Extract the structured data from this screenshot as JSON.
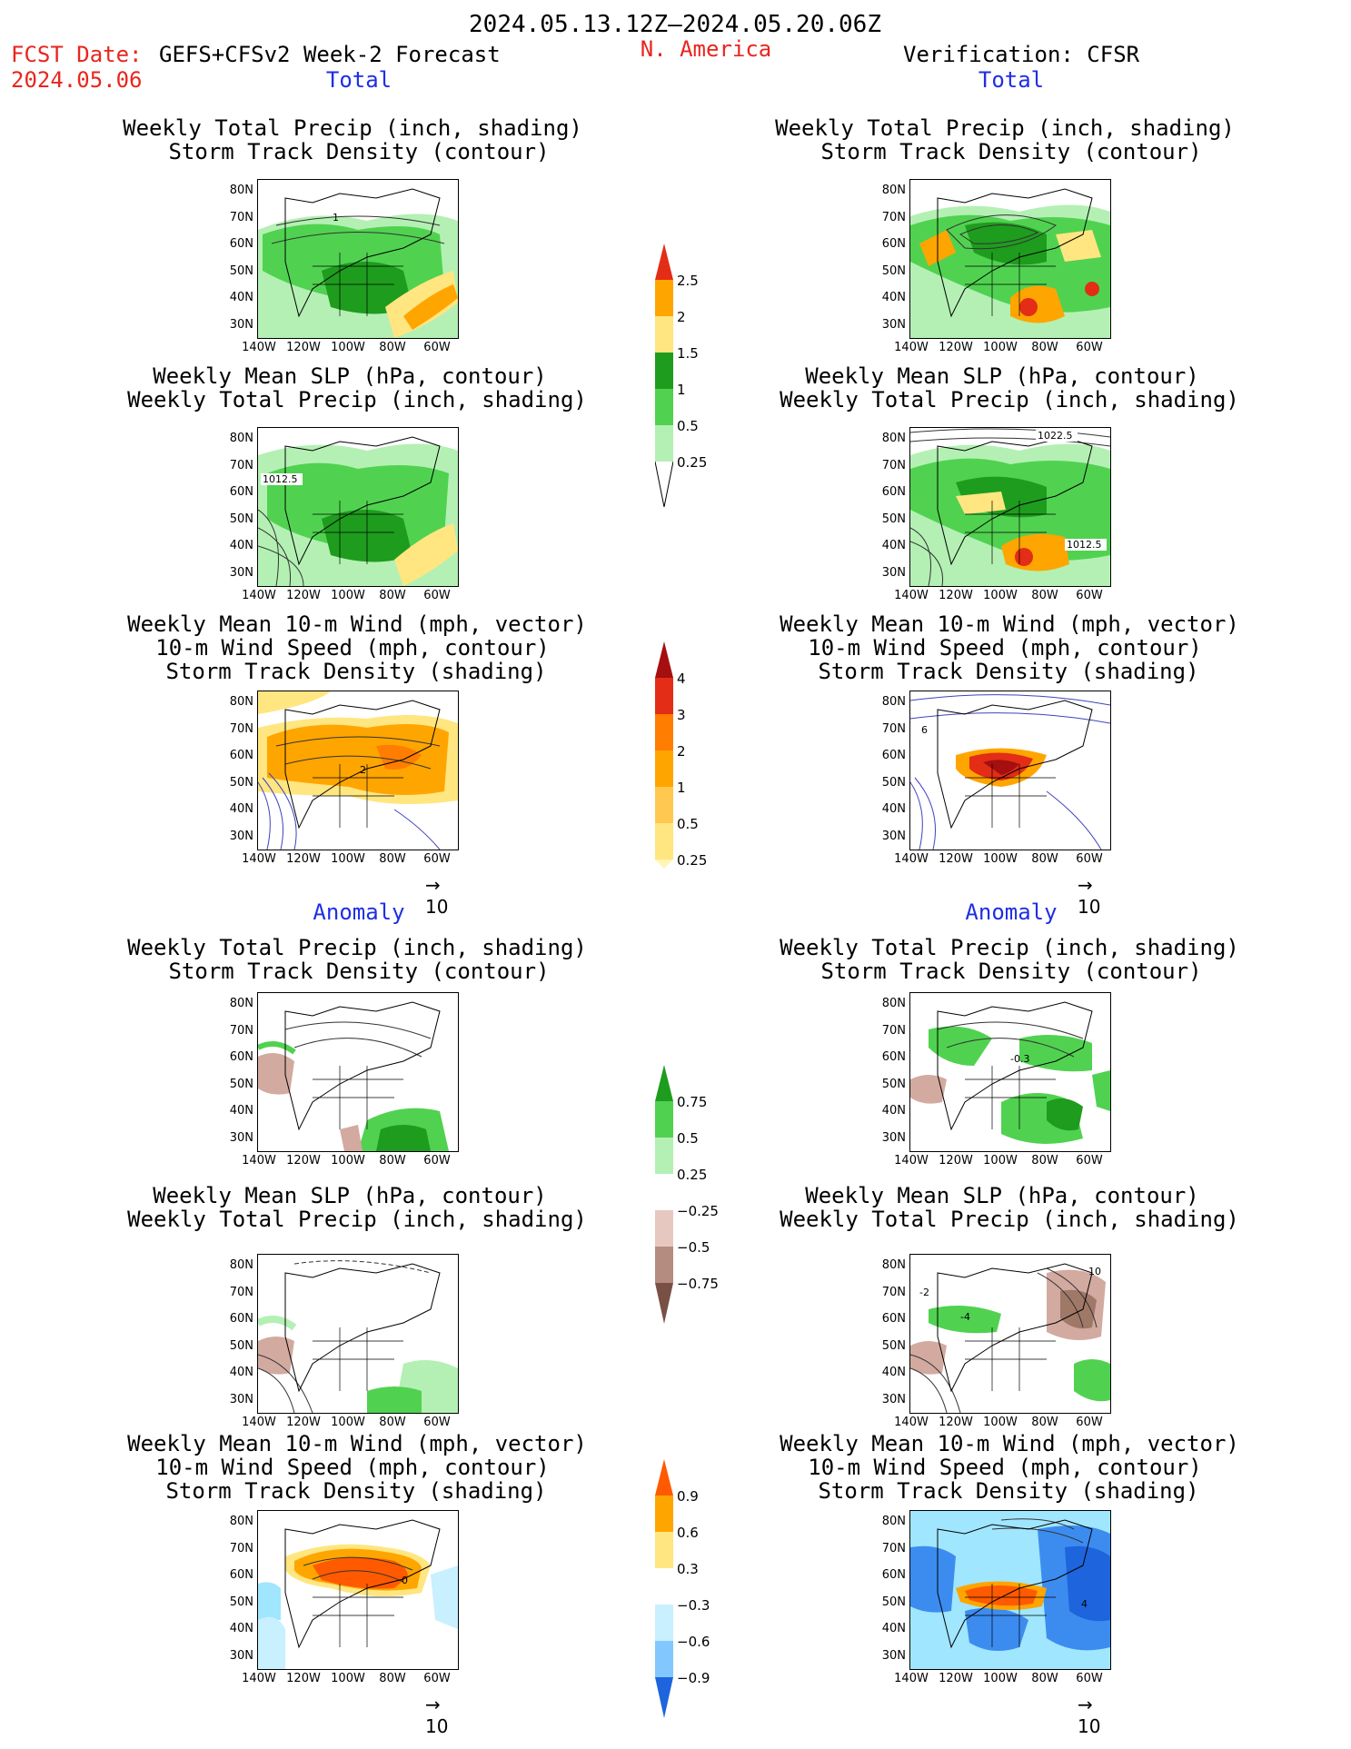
{
  "header": {
    "date_range": "2024.05.13.12Z–2024.05.20.06Z",
    "fcst_label": "FCST Date:",
    "model": "GEFS+CFSv2 Week-2 Forecast",
    "fcst_date": "2024.05.06",
    "region": "N. America",
    "verification": "Verification: CFSR"
  },
  "sections": {
    "total": "Total",
    "anomaly": "Anomaly"
  },
  "panel_titles": {
    "precip_storm": [
      "Weekly Total Precip (inch, shading)",
      "Storm Track Density (contour)"
    ],
    "slp_precip": [
      "Weekly Mean SLP (hPa, contour)",
      "Weekly Total Precip (inch, shading)"
    ],
    "wind_storm": [
      "Weekly Mean 10-m Wind (mph, vector)",
      "10-m Wind Speed (mph, contour)",
      "Storm Track Density (shading)"
    ]
  },
  "axes": {
    "lat": [
      "80N",
      "70N",
      "60N",
      "50N",
      "40N",
      "30N"
    ],
    "lon": [
      "140W",
      "120W",
      "100W",
      "80W",
      "60W"
    ]
  },
  "vector_ref": "10",
  "colorbars": {
    "precip_total": [
      "2.5",
      "2",
      "1.5",
      "1",
      "0.5",
      "0.25"
    ],
    "storm_total": [
      "4",
      "3",
      "2",
      "1",
      "0.5",
      "0.25"
    ],
    "precip_anom": [
      "0.75",
      "0.5",
      "0.25",
      "−0.25",
      "−0.5",
      "−0.75"
    ],
    "storm_anom": [
      "0.9",
      "0.6",
      "0.3",
      "−0.3",
      "−0.6",
      "−0.9"
    ]
  },
  "map_labels": {
    "fc_precip_total": "1",
    "ob_slp_total_a": "1022.5",
    "fc_slp_total": "1012.5",
    "ob_slp_total_b": "1012.5",
    "fc_wind_total": "2",
    "ob_wind_total": "6",
    "ob_precip_anom": "-0.3",
    "ob_slp_anom_a": "-2",
    "ob_slp_anom_b": "-4",
    "ob_slp_anom_c": "10",
    "fc_wind_anom": "0",
    "ob_wind_anom": "4"
  },
  "colors": {
    "precip_light": "#b4f0b4",
    "precip_mid": "#50d250",
    "precip_dark": "#1e9c1e",
    "storm_yellow": "#ffe680",
    "storm_orange": "#ffa500",
    "storm_red": "#e32d16",
    "storm_dark": "#a50f0f",
    "anom_brown": "#d2aaa0",
    "anom_blue": "#3c8cf0",
    "anom_lightblue": "#a0e6ff"
  }
}
